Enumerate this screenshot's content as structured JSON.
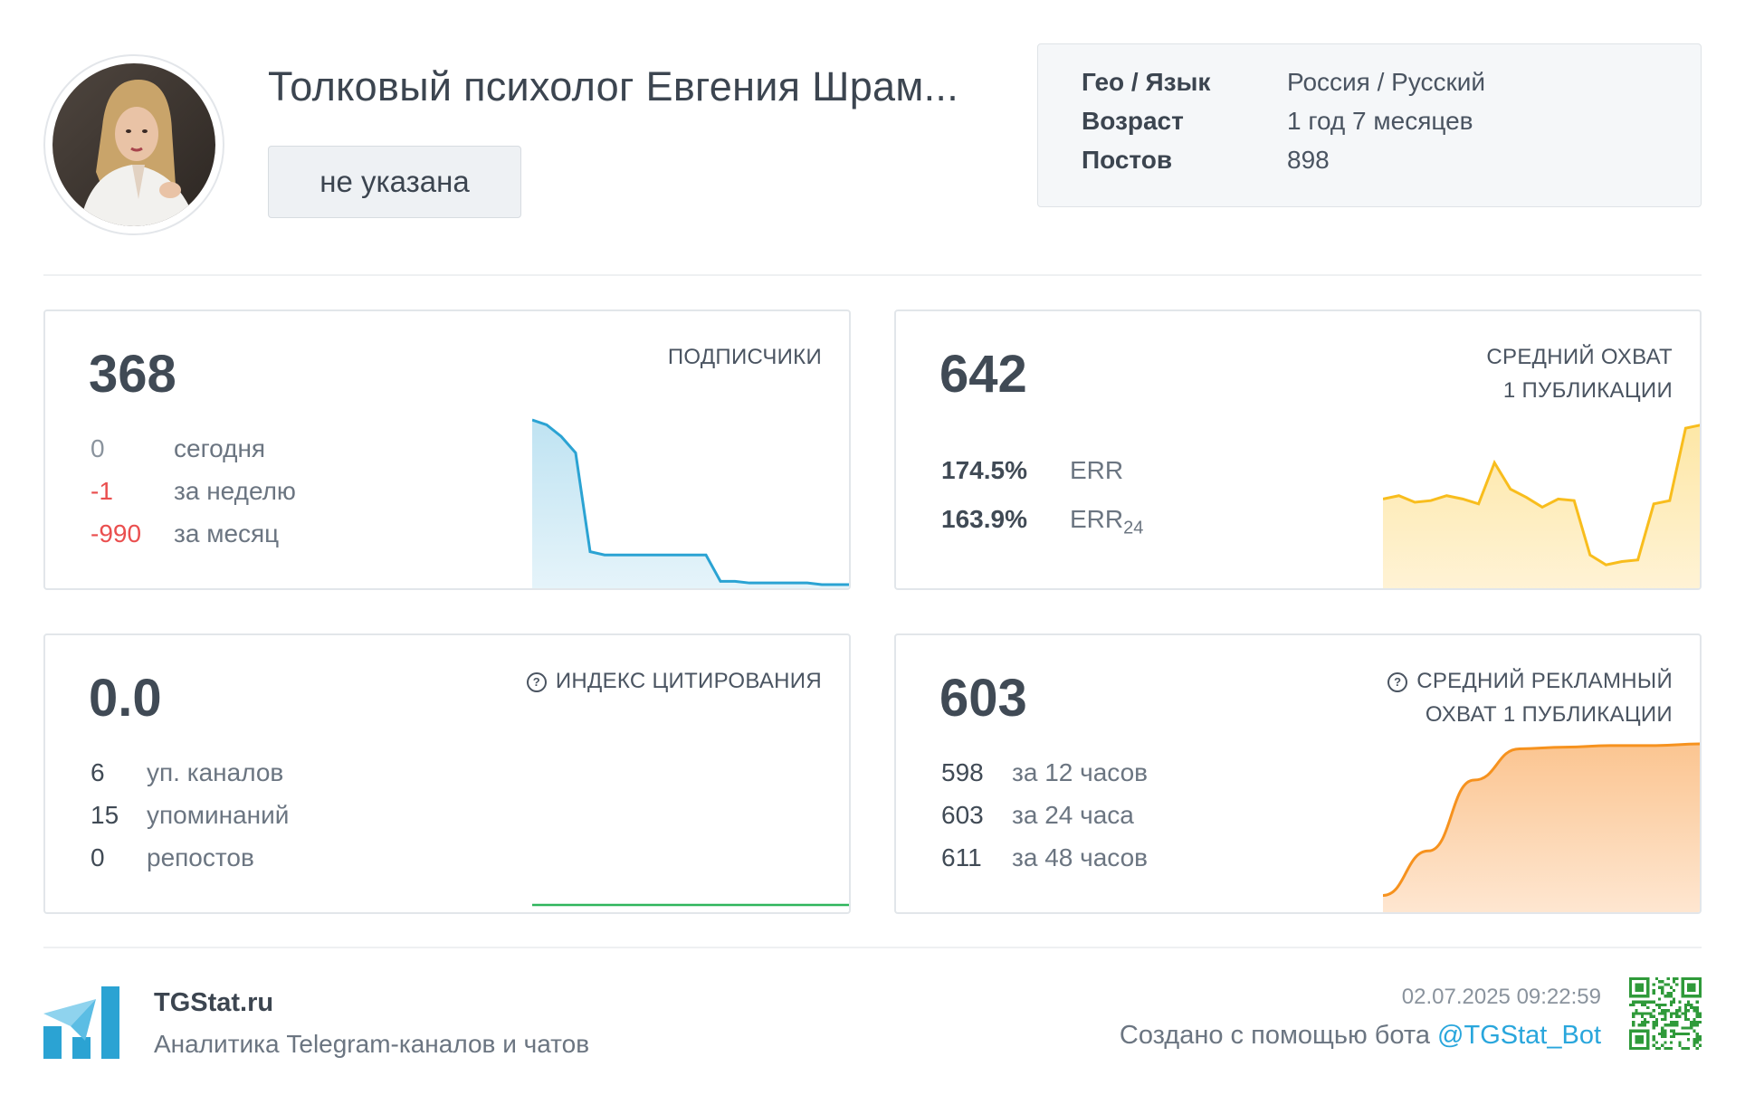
{
  "channel": {
    "title": "Толковый психолог Евгения Шрам...",
    "category": "не указана"
  },
  "info": [
    {
      "key": "Гео / Язык",
      "value": "Россия / Русский"
    },
    {
      "key": "Возраст",
      "value": "1 год 7 месяцев"
    },
    {
      "key": "Постов",
      "value": "898"
    }
  ],
  "subscribers": {
    "label": "ПОДПИСЧИКИ",
    "value": "368",
    "rows": [
      {
        "num": "0",
        "text": "сегодня",
        "color": "#8a939d"
      },
      {
        "num": "-1",
        "text": "за неделю",
        "color": "#ea4f4f"
      },
      {
        "num": "-990",
        "text": "за месяц",
        "color": "#ea4f4f"
      }
    ],
    "color": "#2ba3d3"
  },
  "reach": {
    "label_line1": "СРЕДНИЙ ОХВАТ",
    "label_line2": "1 ПУБЛИКАЦИИ",
    "value": "642",
    "err_value": "174.5%",
    "err_label": "ERR",
    "err24_value": "163.9%",
    "err24_label": "ERR",
    "err24_sub": "24",
    "color": "#f8bd1d"
  },
  "citation": {
    "label": "ИНДЕКС ЦИТИРОВАНИЯ",
    "value": "0.0",
    "rows": [
      {
        "num": "6",
        "text": "уп. каналов"
      },
      {
        "num": "15",
        "text": "упоминаний"
      },
      {
        "num": "0",
        "text": "репостов"
      }
    ],
    "color": "#2fb55c"
  },
  "ad_reach": {
    "label_line1": "СРЕДНИЙ РЕКЛАМНЫЙ",
    "label_line2": "ОХВАТ 1 ПУБЛИКАЦИИ",
    "value": "603",
    "rows": [
      {
        "num": "598",
        "text": "за 12 часов"
      },
      {
        "num": "603",
        "text": "за 24 часа"
      },
      {
        "num": "611",
        "text": "за 48 часов"
      }
    ],
    "color": "#f6921e"
  },
  "footer": {
    "brand": "TGStat.ru",
    "tagline": "Аналитика Telegram-каналов и чатов",
    "timestamp": "02.07.2025 09:22:59",
    "made_with": "Создано с помощью бота ",
    "bot": "@TGStat_Bot"
  },
  "sparklines": {
    "subscribers": [
      100,
      97,
      90,
      80,
      20,
      18,
      18,
      18,
      18,
      18,
      18,
      18,
      18,
      2,
      2,
      1,
      1,
      1,
      1,
      1,
      0,
      0,
      0
    ],
    "reach": [
      52,
      54,
      50,
      51,
      54,
      52,
      49,
      74,
      58,
      53,
      47,
      52,
      51,
      18,
      12,
      14,
      15,
      49,
      51,
      95,
      97
    ],
    "ad_reach": [
      8,
      35,
      78,
      97,
      98,
      99,
      99,
      100
    ]
  }
}
